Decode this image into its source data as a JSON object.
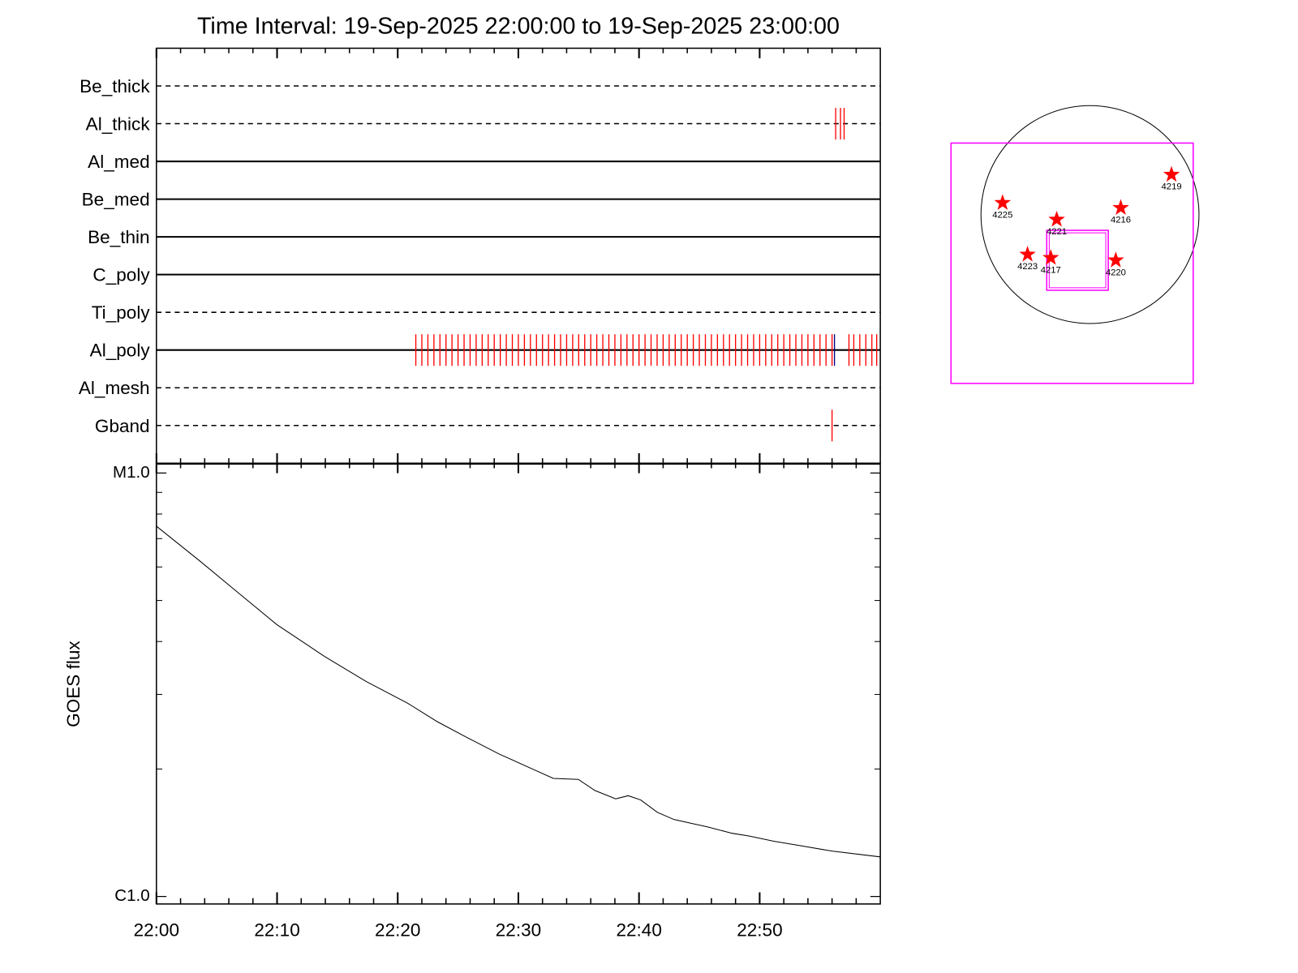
{
  "chart_data": [
    {
      "type": "events",
      "title": "Time Interval: 19-Sep-2025 22:00:00 to 19-Sep-2025 23:00:00",
      "xlim": [
        0,
        60
      ],
      "rows": [
        {
          "name": "Be_thick",
          "style": "dashed",
          "series": []
        },
        {
          "name": "Al_thick",
          "style": "dashed",
          "series": [
            {
              "color": "#ff0000",
              "values": [
                56.3,
                56.7,
                57.0
              ]
            }
          ]
        },
        {
          "name": "Al_med",
          "style": "solid",
          "series": []
        },
        {
          "name": "Be_med",
          "style": "solid",
          "series": []
        },
        {
          "name": "Be_thin",
          "style": "solid",
          "series": []
        },
        {
          "name": "C_poly",
          "style": "solid",
          "series": []
        },
        {
          "name": "Ti_poly",
          "style": "dashed",
          "series": []
        },
        {
          "name": "Al_poly",
          "style": "solid",
          "series": [
            {
              "color": "#ff0000",
              "values": [
                21.5,
                22,
                22.5,
                23,
                23.5,
                24,
                24.5,
                25,
                25.5,
                26,
                26.5,
                27,
                27.5,
                28,
                28.5,
                29,
                29.5,
                30,
                30.5,
                31,
                31.5,
                32,
                32.5,
                33,
                33.5,
                34,
                34.5,
                35,
                35.5,
                36,
                36.5,
                37,
                37.5,
                38,
                38.5,
                39,
                39.5,
                40,
                40.5,
                41,
                41.5,
                42,
                42.5,
                43,
                43.5,
                44,
                44.5,
                45,
                45.5,
                46,
                46.5,
                47,
                47.5,
                48,
                48.5,
                49,
                49.5,
                50,
                50.5,
                51,
                51.5,
                52,
                52.5,
                53,
                53.5,
                54,
                54.5,
                55,
                55.5,
                56,
                57.4,
                57.8,
                58.3,
                58.8,
                59.3,
                59.7
              ]
            },
            {
              "color": "#000080",
              "values": [
                56.2
              ]
            }
          ]
        },
        {
          "name": "Al_mesh",
          "style": "dashed",
          "series": []
        },
        {
          "name": "Gband",
          "style": "dashed",
          "series": [
            {
              "color": "#ff0000",
              "values": [
                56.0
              ]
            }
          ]
        }
      ]
    },
    {
      "type": "line",
      "ylabel": "GOES flux",
      "log": true,
      "color": "#000000",
      "xlim": [
        0,
        60
      ],
      "xticks": [
        {
          "value": 0,
          "label": "22:00"
        },
        {
          "value": 10,
          "label": "22:10"
        },
        {
          "value": 20,
          "label": "22:20"
        },
        {
          "value": 30,
          "label": "22:30"
        },
        {
          "value": 40,
          "label": "22:40"
        },
        {
          "value": 50,
          "label": "22:50"
        }
      ],
      "xminorticks": [
        2,
        4,
        6,
        8,
        12,
        14,
        16,
        18,
        22,
        24,
        26,
        28,
        32,
        34,
        36,
        38,
        42,
        44,
        46,
        48,
        52,
        54,
        56,
        58
      ],
      "ylim": [
        9.6e-07,
        1.05e-05
      ],
      "yticks": [
        {
          "value": 1e-05,
          "label": "M1.0"
        },
        {
          "value": 1e-06,
          "label": "C1.0"
        }
      ],
      "yminorticks": [
        2e-06,
        3e-06,
        4e-06,
        5e-06,
        6e-06,
        7e-06,
        8e-06,
        9e-06
      ],
      "x": [
        0,
        3.59,
        6.34,
        10.0,
        13.93,
        17.38,
        20.83,
        23.24,
        25.66,
        28.41,
        31.17,
        32.9,
        34.97,
        36.34,
        38.07,
        39.1,
        40.14,
        41.52,
        42.9,
        45.66,
        47.72,
        49.1,
        51.17,
        53.24,
        56.0,
        60.0
      ],
      "values": [
        7.49e-06,
        6.2e-06,
        5.34e-06,
        4.38e-06,
        3.69e-06,
        3.22e-06,
        2.86e-06,
        2.59e-06,
        2.38e-06,
        2.17e-06,
        2e-06,
        1.9e-06,
        1.89e-06,
        1.78e-06,
        1.7e-06,
        1.73e-06,
        1.69e-06,
        1.58e-06,
        1.52e-06,
        1.46e-06,
        1.41e-06,
        1.39e-06,
        1.35e-06,
        1.32e-06,
        1.28e-06,
        1.24e-06
      ]
    },
    {
      "type": "map",
      "sun_radius": 960,
      "limb_color": "#000000",
      "star_color": "#ff0000",
      "box_color": "#ff00ff",
      "boxes": [
        {
          "x0": -1224,
          "x1": 909,
          "y0": -1488,
          "y1": 630
        },
        {
          "x0": -381,
          "x1": 161,
          "y0": -667,
          "y1": -139
        }
      ],
      "stars": [
        {
          "label": "4219",
          "x": 718,
          "y": 352
        },
        {
          "label": "4225",
          "x": -770,
          "y": 103
        },
        {
          "label": "4221",
          "x": -293,
          "y": -44
        },
        {
          "label": "4216",
          "x": 271,
          "y": 59
        },
        {
          "label": "4223",
          "x": -550,
          "y": -352
        },
        {
          "label": "4217",
          "x": -345,
          "y": -381
        },
        {
          "label": "4220",
          "x": 227,
          "y": -403
        }
      ]
    }
  ]
}
